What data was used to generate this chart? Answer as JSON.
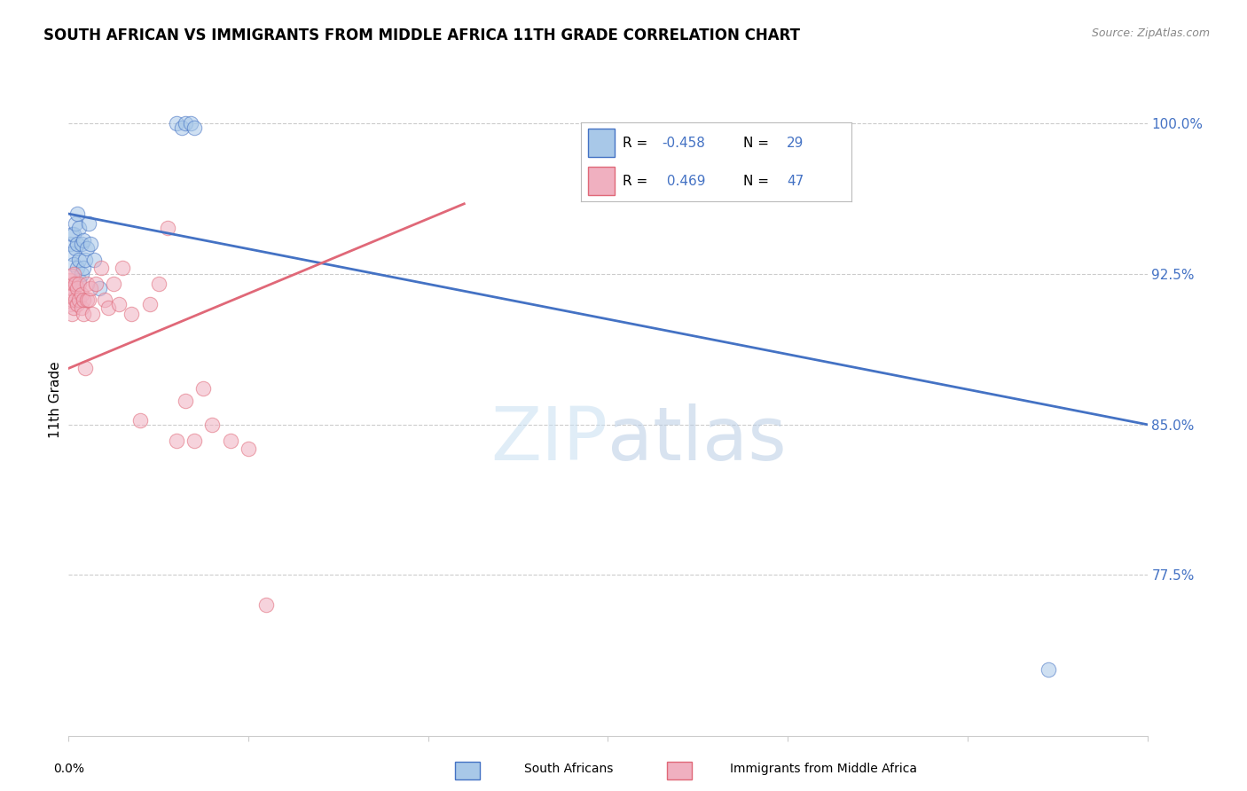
{
  "title": "SOUTH AFRICAN VS IMMIGRANTS FROM MIDDLE AFRICA 11TH GRADE CORRELATION CHART",
  "source": "Source: ZipAtlas.com",
  "ylabel": "11th Grade",
  "xmin": 0.0,
  "xmax": 0.6,
  "ymin": 0.695,
  "ymax": 1.03,
  "blue_color": "#a8c8e8",
  "pink_color": "#f0b0c0",
  "blue_line_color": "#4472c4",
  "pink_line_color": "#e06878",
  "right_axis_color": "#4472c4",
  "grid_color": "#cccccc",
  "background_color": "#ffffff",
  "watermark_zip": "ZIP",
  "watermark_atlas": "atlas",
  "blue_scatter_x": [
    0.001,
    0.002,
    0.002,
    0.003,
    0.003,
    0.004,
    0.004,
    0.005,
    0.005,
    0.005,
    0.006,
    0.006,
    0.006,
    0.007,
    0.007,
    0.008,
    0.008,
    0.009,
    0.01,
    0.011,
    0.012,
    0.014,
    0.017,
    0.06,
    0.063,
    0.065,
    0.068,
    0.07,
    0.545
  ],
  "blue_scatter_y": [
    0.94,
    0.935,
    0.945,
    0.93,
    0.945,
    0.938,
    0.95,
    0.928,
    0.94,
    0.955,
    0.922,
    0.932,
    0.948,
    0.925,
    0.94,
    0.928,
    0.942,
    0.932,
    0.938,
    0.95,
    0.94,
    0.932,
    0.918,
    1.0,
    0.998,
    1.0,
    1.0,
    0.998,
    0.728
  ],
  "pink_scatter_x": [
    0.001,
    0.001,
    0.001,
    0.002,
    0.002,
    0.002,
    0.002,
    0.003,
    0.003,
    0.003,
    0.003,
    0.004,
    0.004,
    0.005,
    0.005,
    0.006,
    0.006,
    0.007,
    0.007,
    0.008,
    0.008,
    0.009,
    0.01,
    0.01,
    0.011,
    0.012,
    0.013,
    0.015,
    0.018,
    0.02,
    0.022,
    0.025,
    0.028,
    0.03,
    0.035,
    0.04,
    0.045,
    0.05,
    0.055,
    0.06,
    0.065,
    0.07,
    0.075,
    0.08,
    0.09,
    0.1,
    0.11
  ],
  "pink_scatter_y": [
    0.918,
    0.91,
    0.922,
    0.905,
    0.912,
    0.918,
    0.924,
    0.908,
    0.915,
    0.92,
    0.925,
    0.912,
    0.92,
    0.91,
    0.918,
    0.912,
    0.92,
    0.908,
    0.915,
    0.905,
    0.912,
    0.878,
    0.912,
    0.92,
    0.912,
    0.918,
    0.905,
    0.92,
    0.928,
    0.912,
    0.908,
    0.92,
    0.91,
    0.928,
    0.905,
    0.852,
    0.91,
    0.92,
    0.948,
    0.842,
    0.862,
    0.842,
    0.868,
    0.85,
    0.842,
    0.838,
    0.76
  ],
  "blue_line_x0": 0.0,
  "blue_line_y0": 0.955,
  "blue_line_x1": 0.6,
  "blue_line_y1": 0.85,
  "pink_line_x0": 0.0,
  "pink_line_y0": 0.878,
  "pink_line_x1": 0.22,
  "pink_line_y1": 0.96,
  "ytick_positions": [
    0.775,
    0.85,
    0.925,
    1.0
  ],
  "ytick_labels": [
    "77.5%",
    "85.0%",
    "92.5%",
    "100.0%"
  ],
  "xtick_positions": [
    0.0,
    0.1,
    0.2,
    0.3,
    0.4,
    0.5,
    0.6
  ]
}
